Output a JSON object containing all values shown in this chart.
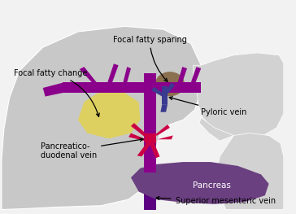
{
  "bg_color": "#f2f2f2",
  "liver_color": "#c8c8c8",
  "stomach_color": "#d2d2d2",
  "fatty_change_color": "#ddd060",
  "fatty_sparing_color": "#8B7050",
  "portal_vein_color": "#8B008B",
  "pyloric_vein_color": "#3a3a90",
  "pancreaticoduodenal_color": "#cc0044",
  "pancreas_color": "#6a4080",
  "sup_mesenteric_color": "#5a0080",
  "labels": {
    "focal_fatty_change": "Focal fatty change",
    "focal_fatty_sparing": "Focal fatty sparing",
    "pyloric_vein": "Pyloric vein",
    "pancreaticoduodenal_line1": "Pancreatico-",
    "pancreaticoduodenal_line2": "duodenal vein",
    "pancreas": "Pancreas",
    "superior_mesenteric": "Superior mesenteric vein"
  },
  "label_fontsize": 7.0
}
